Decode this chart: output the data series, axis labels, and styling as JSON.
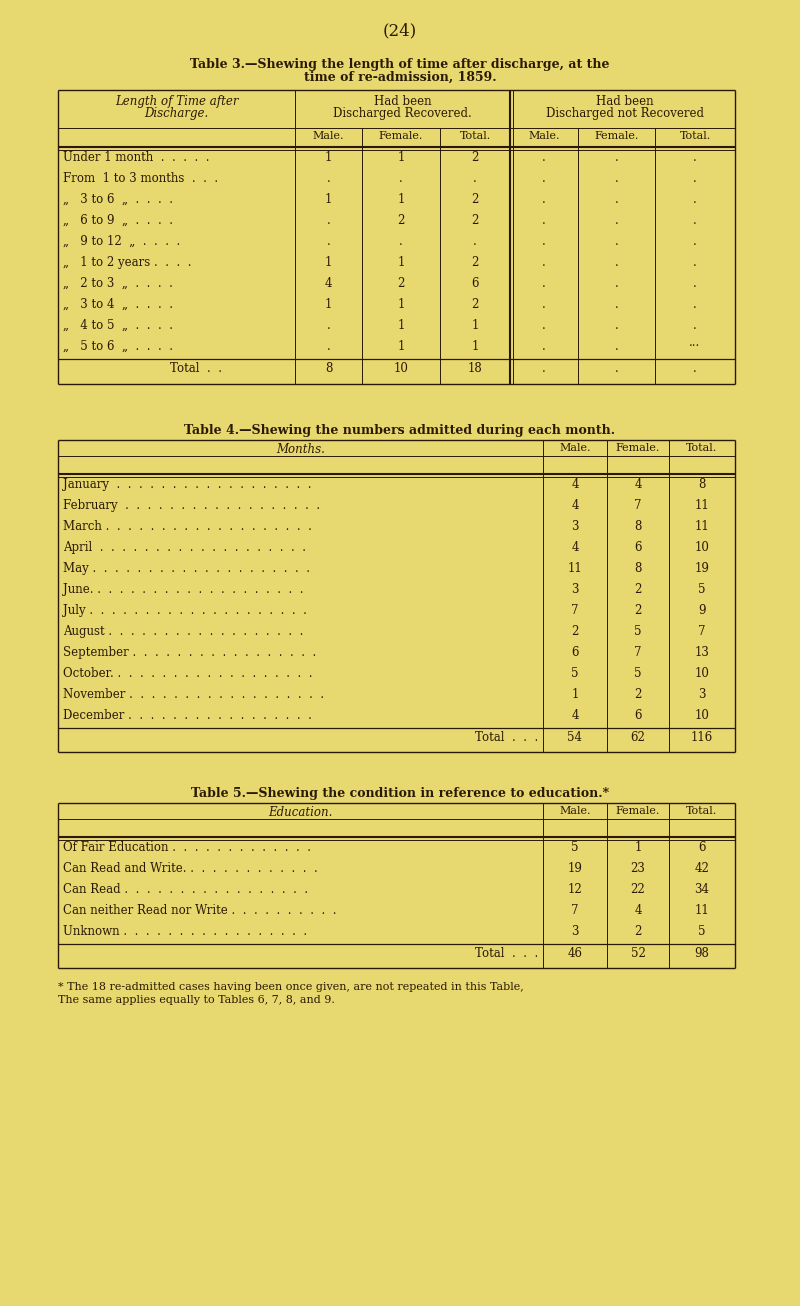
{
  "page_bg": "#e8d870",
  "text_color": "#2a1a05",
  "page_number": "(24)",
  "table3": {
    "title_line1": "Table 3.—Shewing the length of time after discharge, at the",
    "title_line2": "time of re-admission, 1859.",
    "col_header1": "Length of Time after",
    "col_header2": "Discharge.",
    "group1_header1": "Had been",
    "group1_header2": "Discharged Recovered.",
    "group2_header1": "Had been",
    "group2_header2": "Discharged not Recovered",
    "sub_headers": [
      "Male.",
      "Female.",
      "Total.",
      "Male.",
      "Female.",
      "Total."
    ],
    "rows": [
      [
        "Under 1 month  .  .  .  .  .",
        "1",
        "1",
        "2",
        ".",
        ".",
        "."
      ],
      [
        "From  1 to 3 months  .  .  .",
        ".",
        ".",
        ".",
        ".",
        ".",
        "."
      ],
      [
        "„   3 to 6  „  .  .  .  .",
        "1",
        "1",
        "2",
        ".",
        ".",
        "."
      ],
      [
        "„   6 to 9  „  .  .  .  .",
        ".",
        "2",
        "2",
        ".",
        ".",
        "."
      ],
      [
        "„   9 to 12  „  .  .  .  .",
        ".",
        ".",
        ".",
        ".",
        ".",
        "."
      ],
      [
        "„   1 to 2 years .  .  .  .",
        "1",
        "1",
        "2",
        ".",
        ".",
        "."
      ],
      [
        "„   2 to 3  „  .  .  .  .",
        "4",
        "2",
        "6",
        ".",
        ".",
        "."
      ],
      [
        "„   3 to 4  „  .  .  .  .",
        "1",
        "1",
        "2",
        ".",
        ".",
        "."
      ],
      [
        "„   4 to 5  „  .  .  .  .",
        ".",
        "1",
        "1",
        ".",
        ".",
        "."
      ],
      [
        "„   5 to 6  „  .  .  .  .",
        ".",
        "1",
        "1",
        ".",
        ".",
        "···"
      ]
    ],
    "total_row": [
      "Total  .  .",
      "8",
      "10",
      "18",
      ".",
      ".",
      "."
    ]
  },
  "table4": {
    "title": "Table 4.—Shewing the numbers admitted during each month.",
    "col_header": "Months.",
    "sub_headers": [
      "Male.",
      "Female.",
      "Total."
    ],
    "rows": [
      [
        "January  .  .  .  .  .  .  .  .  .  .  .  .  .  .  .  .  .  .",
        "4",
        "4",
        "8"
      ],
      [
        "February  .  .  .  .  .  .  .  .  .  .  .  .  .  .  .  .  .  .",
        "4",
        "7",
        "11"
      ],
      [
        "March .  .  .  .  .  .  .  .  .  .  .  .  .  .  .  .  .  .  .",
        "3",
        "8",
        "11"
      ],
      [
        "April  .  .  .  .  .  .  .  .  .  .  .  .  .  .  .  .  .  .  .",
        "4",
        "6",
        "10"
      ],
      [
        "May .  .  .  .  .  .  .  .  .  .  .  .  .  .  .  .  .  .  .  .",
        "11",
        "8",
        "19"
      ],
      [
        "June. .  .  .  .  .  .  .  .  .  .  .  .  .  .  .  .  .  .  .",
        "3",
        "2",
        "5"
      ],
      [
        "July .  .  .  .  .  .  .  .  .  .  .  .  .  .  .  .  .  .  .  .",
        "7",
        "2",
        "9"
      ],
      [
        "August .  .  .  .  .  .  .  .  .  .  .  .  .  .  .  .  .  .",
        "2",
        "5",
        "7"
      ],
      [
        "September .  .  .  .  .  .  .  .  .  .  .  .  .  .  .  .  .",
        "6",
        "7",
        "13"
      ],
      [
        "October. .  .  .  .  .  .  .  .  .  .  .  .  .  .  .  .  .  .",
        "5",
        "5",
        "10"
      ],
      [
        "November .  .  .  .  .  .  .  .  .  .  .  .  .  .  .  .  .  .",
        "1",
        "2",
        "3"
      ],
      [
        "December .  .  .  .  .  .  .  .  .  .  .  .  .  .  .  .  .",
        "4",
        "6",
        "10"
      ]
    ],
    "total_row": [
      "Total  .  .  .",
      "54",
      "62",
      "116"
    ]
  },
  "table5": {
    "title": "Table 5.—Shewing the condition in reference to education.*",
    "col_header": "Education.",
    "sub_headers": [
      "Male.",
      "Female.",
      "Total."
    ],
    "rows": [
      [
        "Of Fair Education .  .  .  .  .  .  .  .  .  .  .  .  .",
        "5",
        "1",
        "6"
      ],
      [
        "Can Read and Write. .  .  .  .  .  .  .  .  .  .  .  .",
        "19",
        "23",
        "42"
      ],
      [
        "Can Read .  .  .  .  .  .  .  .  .  .  .  .  .  .  .  .  .",
        "12",
        "22",
        "34"
      ],
      [
        "Can neither Read nor Write .  .  .  .  .  .  .  .  .  .",
        "7",
        "4",
        "11"
      ],
      [
        "Unknown .  .  .  .  .  .  .  .  .  .  .  .  .  .  .  .  .",
        "3",
        "2",
        "5"
      ]
    ],
    "total_row": [
      "Total  .  .  .",
      "46",
      "52",
      "98"
    ]
  },
  "footnote_line1": "* The 18 re-admitted cases having been once given, are not repeated in this Table,",
  "footnote_line2": "The same applies equally to Tables 6, 7, 8, and 9."
}
